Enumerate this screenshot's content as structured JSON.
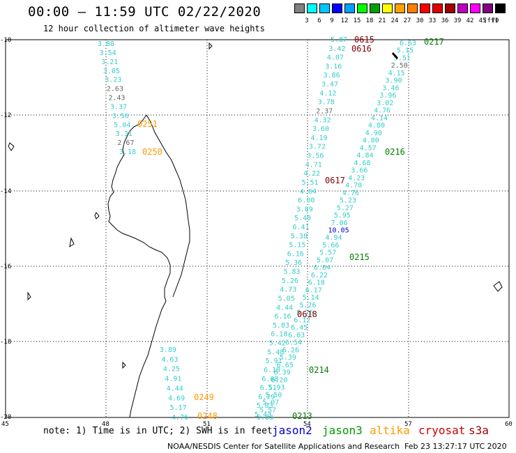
{
  "header": {
    "title": "00:00 – 11:59 UTC 02/22/2020",
    "subtitle": "12 hour collection of altimeter wave heights"
  },
  "legend": {
    "colors": [
      "#808080",
      "#00ffff",
      "#00c8ff",
      "#0000ff",
      "#00a0ff",
      "#00ff00",
      "#00a000",
      "#ffff00",
      "#ffa000",
      "#ff8000",
      "#ff0000",
      "#e00000",
      "#a00000",
      "#c000c0",
      "#ff00ff",
      "#800080",
      "#000000"
    ],
    "ticks": [
      "3",
      "6",
      "9",
      "12",
      "15",
      "18",
      "21",
      "24",
      "27",
      "30",
      "33",
      "36",
      "39",
      "42",
      "45",
      "70",
      "(ft)"
    ]
  },
  "axes": {
    "y_labels": [
      "-10",
      "-12",
      "-14",
      "-16",
      "-18",
      "-20"
    ],
    "x_labels": [
      "45",
      "48",
      "51",
      "54",
      "57",
      "60"
    ]
  },
  "passes": [
    {
      "label": "0615",
      "color": "#800000"
    },
    {
      "label": "0616",
      "color": "#800000"
    },
    {
      "label": "0617",
      "color": "#800000"
    },
    {
      "label": "0618",
      "color": "#800000"
    },
    {
      "label": "0217",
      "color": "#008000"
    },
    {
      "label": "0216",
      "color": "#008000"
    },
    {
      "label": "0215",
      "color": "#008000"
    },
    {
      "label": "0214",
      "color": "#008000"
    },
    {
      "label": "0213",
      "color": "#008000"
    },
    {
      "label": "0251",
      "color": "#ff9900"
    },
    {
      "label": "0250",
      "color": "#ff9900"
    },
    {
      "label": "0249",
      "color": "#ff9900"
    },
    {
      "label": "0248",
      "color": "#ff9900"
    }
  ],
  "tracks": {
    "altika_north": [
      "3.88",
      "3.54",
      "3.21",
      "3.05",
      "3.23",
      "2.63",
      "2.43",
      "3.37",
      "3.56",
      "5.04",
      "3.31",
      "2.67",
      "3.18"
    ],
    "altika_south": [
      "3.89",
      "4.63",
      "4.25",
      "4.91",
      "4.44",
      "4.69",
      "5.17",
      "4.76"
    ],
    "cryosat": [
      "5.87",
      "3.42",
      "4.07",
      "3.16",
      "3.86",
      "3.47",
      "4.12",
      "3.78",
      "2.37",
      "4.32",
      "3.60",
      "4.19",
      "3.72",
      "3.56",
      "4.71",
      "4.22",
      "5.51",
      "4.04",
      "6.00",
      "3.89",
      "5.40",
      "6.41",
      "5.38",
      "5.15",
      "6.16",
      "5.36",
      "5.83",
      "5.26",
      "4.73",
      "5.05",
      "4.44",
      "6.16",
      "5.83",
      "6.18",
      "5.42",
      "5.48",
      "5.91",
      "6.18",
      "6.08",
      "6.51",
      "6.29",
      "5.83",
      "5.43"
    ],
    "jason3": [
      "6.63",
      "5.15",
      "5.51",
      "2.50",
      "4.15",
      "3.90",
      "3.46",
      "3.96",
      "3.02",
      "4.76",
      "4.14",
      "4.80",
      "4.90",
      "4.00",
      "4.57",
      "4.84",
      "4.68",
      "3.66",
      "4.23",
      "4.70",
      "4.76",
      "5.23",
      "5.27",
      "5.95",
      "7.06",
      "10.05",
      "4.94",
      "5.66",
      "5.57",
      "5.07",
      "6.04",
      "6.22",
      "6.18",
      "6.17",
      "5.14",
      "5.26",
      "5.76",
      "6.12",
      "6.45",
      "6.03",
      "6.54",
      "6.26",
      "5.39",
      "6.65",
      "6.39",
      "6.20",
      "5.93",
      "5.50",
      "5.07",
      "5.57",
      "5.83"
    ]
  },
  "footer": {
    "note": "note: 1) Time is in UTC; 2) SWH is in feet",
    "satellites": [
      {
        "name": "jason2",
        "color": "#0000cc"
      },
      {
        "name": "jason3",
        "color": "#009900"
      },
      {
        "name": "altika",
        "color": "#ff9900"
      },
      {
        "name": "cryosat",
        "color": "#cc0000"
      },
      {
        "name": "s3a",
        "color": "#990000"
      }
    ],
    "credit": "NOAA/NESDIS Center for Satellite Applications and Research",
    "timestamp": "Feb 23 13:27:17 UTC 2020"
  }
}
